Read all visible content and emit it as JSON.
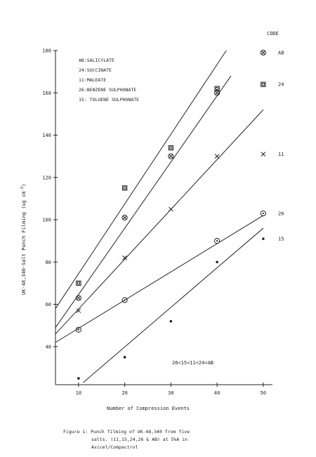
{
  "chart_data": {
    "type": "scatter",
    "code_header": "CODE",
    "xlabel": "Number of Compression Events",
    "ylabel": "UK-48,340-Salt Punch Filming (ug cm",
    "ylabel_sup": "-2",
    "ylabel_close": ")",
    "xlim": [
      5,
      52
    ],
    "ylim": [
      22,
      180
    ],
    "x_ticks": [
      10,
      20,
      30,
      40,
      50
    ],
    "y_ticks": [
      40,
      60,
      80,
      100,
      120,
      140,
      160,
      180
    ],
    "legend": [
      "AB:SALICYLATE",
      "24:SUCCINATE",
      "11:MALEATE",
      "26:BENZENE SULPHONATE",
      "15: TOLUENE SULPHONATE"
    ],
    "annotation": "26<15<11<24<AB",
    "series": [
      {
        "code": "AB",
        "marker": "circle-x",
        "points": [
          [
            10,
            63
          ],
          [
            20,
            101
          ],
          [
            30,
            130
          ],
          [
            40,
            160
          ]
        ],
        "fit": [
          [
            5,
            58
          ],
          [
            42,
            180
          ]
        ],
        "legend_y": 179
      },
      {
        "code": "24",
        "marker": "square",
        "points": [
          [
            10,
            70
          ],
          [
            20,
            115
          ],
          [
            30,
            134
          ],
          [
            40,
            162
          ]
        ],
        "fit": [
          [
            5,
            49
          ],
          [
            43,
            168
          ]
        ],
        "legend_y": 164
      },
      {
        "code": "11",
        "marker": "x",
        "points": [
          [
            10,
            57
          ],
          [
            20,
            82
          ],
          [
            30,
            105
          ],
          [
            40,
            130
          ]
        ],
        "fit": [
          [
            5,
            46
          ],
          [
            50,
            152
          ]
        ],
        "legend_y": 131
      },
      {
        "code": "26",
        "marker": "circle-dot",
        "points": [
          [
            10,
            48
          ],
          [
            20,
            62
          ],
          [
            40,
            90
          ]
        ],
        "fit": [
          [
            5,
            42
          ],
          [
            50,
            102
          ]
        ],
        "legend_y": 103
      },
      {
        "code": "15",
        "marker": "dot",
        "points": [
          [
            10,
            25
          ],
          [
            20,
            35
          ],
          [
            30,
            52
          ],
          [
            40,
            80
          ]
        ],
        "fit": [
          [
            11,
            23
          ],
          [
            50,
            96
          ]
        ],
        "legend_y": 91
      }
    ]
  },
  "caption": {
    "line1": "Figure 1:  Punch filming of UK-48,340 from five",
    "line2": "salts. (11,15,24,26 & AB) at 5%A in",
    "line3": "Avicel/Compactrol"
  }
}
